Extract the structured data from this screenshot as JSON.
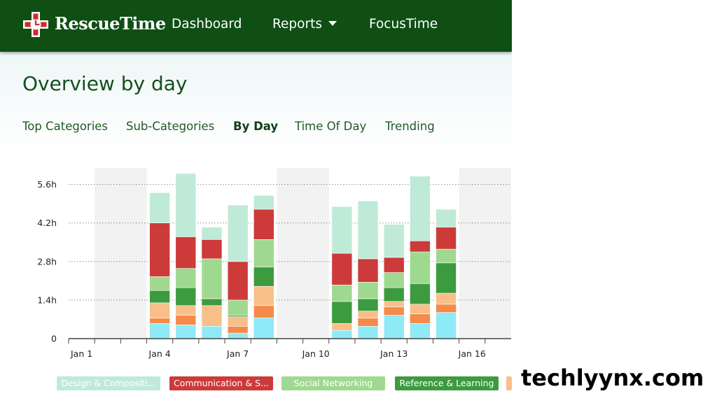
{
  "header": {
    "brand": "RescueTime",
    "nav": [
      {
        "label": "Dashboard"
      },
      {
        "label": "Reports"
      },
      {
        "label": "FocusTime"
      }
    ]
  },
  "page_title": "Overview by day",
  "tabs": [
    {
      "label": "Top Categories"
    },
    {
      "label": "Sub-Categories"
    },
    {
      "label": "By Day",
      "active": true
    },
    {
      "label": "Time Of Day"
    },
    {
      "label": "Trending"
    }
  ],
  "watermark": "techlyynx.com",
  "colors": {
    "header_bg": "#0f4f14",
    "design": "#bfead8",
    "communication": "#cc3a3a",
    "social": "#9fd98f",
    "reference": "#3c9b3f",
    "orange_light": "#f9bf8a",
    "orange": "#f58a4a",
    "cyan": "#8eeaf7"
  },
  "chart_data": {
    "type": "bar",
    "stacked": true,
    "unit": "h",
    "ylim": [
      0,
      6.2
    ],
    "yticks": [
      "0",
      "1.4h",
      "2.8h",
      "4.2h",
      "5.6h"
    ],
    "ytick_values": [
      0,
      1.4,
      2.8,
      4.2,
      5.6
    ],
    "xtick_labels": [
      "Jan 1",
      "Jan 4",
      "Jan 7",
      "Jan 10",
      "Jan 13",
      "Jan 16"
    ],
    "xtick_days": [
      1,
      4,
      7,
      10,
      13,
      16
    ],
    "day_range": [
      0.5,
      17.5
    ],
    "weekend_bands": [
      [
        2,
        3
      ],
      [
        9,
        10
      ],
      [
        16,
        17
      ]
    ],
    "grid": true,
    "legend_position": "bottom",
    "legend": [
      {
        "label": "Design & Compositi...",
        "color": "#bfead8"
      },
      {
        "label": "Communication & S...",
        "color": "#cc3a3a"
      },
      {
        "label": "Social Networking",
        "color": "#9fd98f"
      },
      {
        "label": "Reference & Learning",
        "color": "#3c9b3f"
      },
      {
        "label": "",
        "color": "#f9bf8a"
      }
    ],
    "segment_colors": [
      "#8eeaf7",
      "#f58a4a",
      "#f9bf8a",
      "#3c9b3f",
      "#9fd98f",
      "#cc3a3a",
      "#bfead8"
    ],
    "bars": [
      {
        "day": 4,
        "segments": [
          0.55,
          0.2,
          0.55,
          0.45,
          0.5,
          1.95,
          1.1
        ]
      },
      {
        "day": 5,
        "segments": [
          0.5,
          0.35,
          0.35,
          0.65,
          0.7,
          1.15,
          2.3
        ]
      },
      {
        "day": 6,
        "segments": [
          0.45,
          0.0,
          0.75,
          0.25,
          1.45,
          0.7,
          0.45
        ]
      },
      {
        "day": 7,
        "segments": [
          0.2,
          0.25,
          0.35,
          0.05,
          0.55,
          1.4,
          2.05
        ]
      },
      {
        "day": 8,
        "segments": [
          0.75,
          0.45,
          0.7,
          0.7,
          1.0,
          1.1,
          0.5
        ]
      },
      {
        "day": 11,
        "segments": [
          0.3,
          0.0,
          0.25,
          0.8,
          0.6,
          1.15,
          1.7
        ]
      },
      {
        "day": 12,
        "segments": [
          0.45,
          0.3,
          0.25,
          0.45,
          0.6,
          0.85,
          2.1
        ]
      },
      {
        "day": 13,
        "segments": [
          0.85,
          0.3,
          0.2,
          0.5,
          0.55,
          0.55,
          1.2
        ]
      },
      {
        "day": 14,
        "segments": [
          0.55,
          0.35,
          0.35,
          0.75,
          1.15,
          0.4,
          2.35
        ]
      },
      {
        "day": 15,
        "segments": [
          0.95,
          0.3,
          0.4,
          1.1,
          0.5,
          0.8,
          0.65
        ]
      }
    ]
  }
}
